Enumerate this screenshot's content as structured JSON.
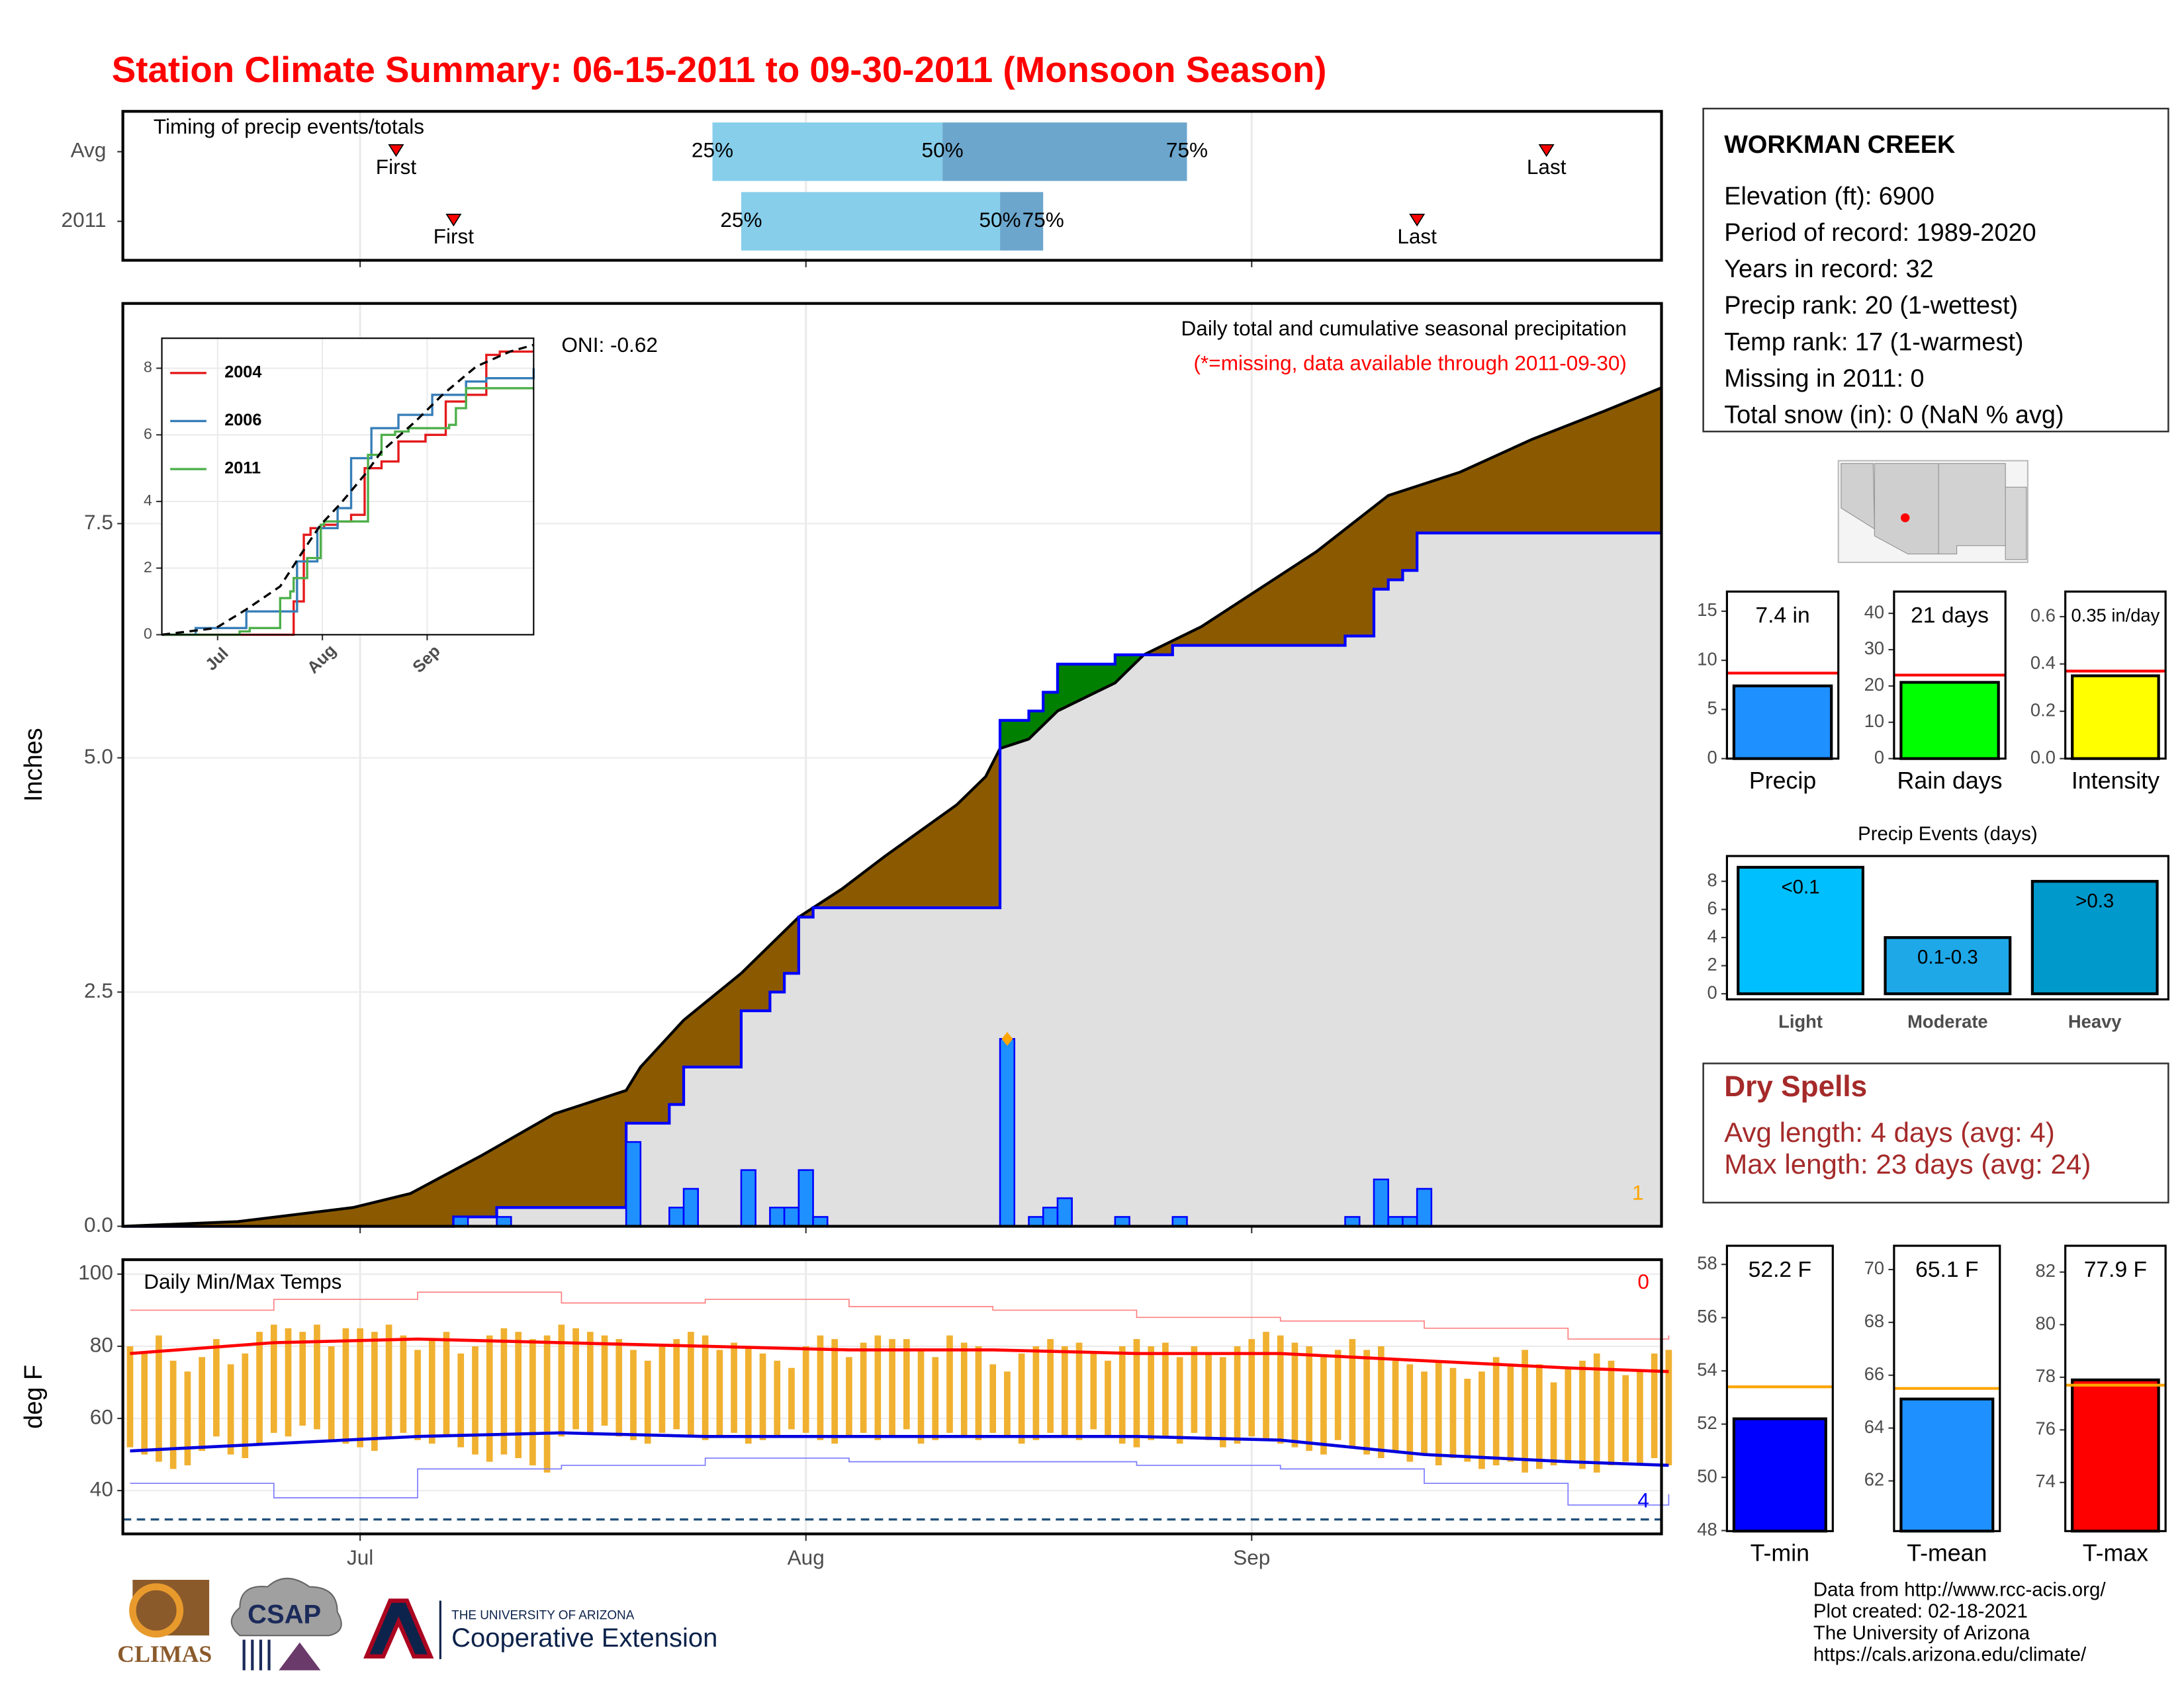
{
  "title": "Station Climate Summary: 06-15-2011 to 09-30-2011 (Monsoon Season)",
  "station": {
    "name": "WORKMAN CREEK",
    "lines": [
      "Elevation (ft): 6900",
      "Period of record: 1989-2020",
      "Years in record: 32",
      "Precip rank: 20 (1-wettest)",
      "Temp rank: 17 (1-warmest)",
      "Missing in 2011: 0",
      "Total snow (in): 0 (NaN % avg)"
    ]
  },
  "dry_spells": {
    "title": "Dry Spells",
    "lines": [
      "Avg length: 4 days (avg: 4)",
      "Max length: 23 days (avg: 24)"
    ]
  },
  "footer": [
    "Data from http://www.rcc-acis.org/",
    "Plot created: 02-18-2021",
    "The University of Arizona",
    "https://cals.arizona.edu/climate/"
  ],
  "logos": {
    "climas": "CLIMAS",
    "csap": "CSAP",
    "university": "THE UNIVERSITY OF ARIZONA",
    "extension": "Cooperative Extension"
  },
  "chart_data": [
    {
      "type": "timing",
      "title": "Timing of precip events/totals",
      "rows": [
        {
          "name": "Avg",
          "values": [
            19,
            41,
            57,
            74,
            99
          ]
        },
        {
          "name": "2011",
          "values": [
            23,
            43,
            61,
            64,
            90
          ]
        }
      ],
      "marker_labels": [
        "First",
        "25%",
        "50%",
        "75%",
        "Last"
      ],
      "colors": [
        "#87ceeb",
        "#6ca6cd"
      ],
      "xlim": [
        0,
        107
      ],
      "xticks": [
        16.5,
        47.5,
        78.5
      ]
    },
    {
      "type": "precip",
      "y_label": "Inches",
      "annotations": [
        {
          "text": "Daily total and cumulative seasonal precipitation",
          "color": "#000000"
        },
        {
          "text": "(*=missing, data available through 2011-09-30)",
          "color": "#ff0000"
        },
        {
          "text": "ONI: -0.62",
          "color": "#000000"
        },
        {
          "text": "1",
          "color": "#ffa500"
        }
      ],
      "series": [
        {
          "x": [
            23,
            26,
            35,
            38,
            39,
            43,
            45,
            46,
            47,
            48,
            61,
            63,
            64,
            65,
            69,
            73,
            85,
            87,
            88,
            89,
            90
          ],
          "values": [
            0.1,
            0.1,
            0.9,
            0.2,
            0.4,
            0.6,
            0.2,
            0.2,
            0.6,
            0.1,
            2.0,
            0.1,
            0.2,
            0.3,
            0.1,
            0.1,
            0.1,
            0.5,
            0.1,
            0.1,
            0.4
          ],
          "color": "#1e90ff",
          "line_color": "#0000ff"
        }
      ],
      "lines": [
        {
          "x": [
            0,
            8,
            16,
            20,
            25,
            30,
            35,
            36,
            39,
            43,
            47,
            50,
            53,
            58,
            60,
            61,
            63,
            65,
            69,
            71,
            75,
            79,
            83,
            88,
            93,
            98,
            103,
            107
          ],
          "values": [
            0,
            0.05,
            0.2,
            0.35,
            0.76,
            1.2,
            1.45,
            1.7,
            2.2,
            2.7,
            3.3,
            3.6,
            3.95,
            4.5,
            4.8,
            5.1,
            5.2,
            5.5,
            5.8,
            6.1,
            6.4,
            6.8,
            7.2,
            7.8,
            8.05,
            8.4,
            8.7,
            8.95
          ],
          "color": "#000000"
        }
      ],
      "fill_colors": {
        "below": "#8b5a00",
        "above": "#008000",
        "base": "#e0e0e0"
      },
      "xlim": [
        0,
        107
      ],
      "ylim": [
        0,
        9.85
      ],
      "xticks": [
        16.5,
        47.5,
        78.5
      ],
      "yticks": [
        {
          "value": 0,
          "label": "0.0"
        },
        2.5,
        {
          "value": 5,
          "label": "5.0"
        },
        7.5
      ],
      "grid": true
    },
    {
      "type": "line",
      "xlim": [
        0,
        110
      ],
      "ylim": [
        0,
        8.9
      ],
      "xticks": [
        {
          "value": 16.5,
          "label": "Jul"
        },
        {
          "value": 47.5,
          "label": "Aug"
        },
        {
          "value": 78.5,
          "label": "Sep"
        }
      ],
      "yticks": [
        0,
        2,
        4,
        6,
        8
      ],
      "series": [
        {
          "name": "2004",
          "color": "#e41a1c",
          "x": [
            0,
            38,
            39,
            42,
            44,
            48,
            52,
            56,
            60,
            65,
            70,
            78,
            84,
            90,
            96,
            100,
            110
          ],
          "values": [
            0,
            0,
            1.0,
            3.0,
            3.2,
            3.3,
            3.4,
            3.6,
            5.0,
            5.2,
            5.8,
            6.0,
            7.0,
            7.2,
            8.4,
            8.5,
            8.5
          ]
        },
        {
          "name": "2006",
          "color": "#377eb8",
          "x": [
            0,
            10,
            25,
            35,
            40,
            46,
            52,
            56,
            62,
            70,
            80,
            90,
            96,
            110
          ],
          "values": [
            0,
            0.2,
            0.7,
            0.7,
            2.2,
            3.2,
            3.8,
            5.3,
            6.2,
            6.6,
            7.2,
            7.6,
            7.7,
            8.0
          ]
        },
        {
          "name": "2011",
          "color": "#4daf4a",
          "x": [
            0,
            23,
            26,
            35,
            38,
            39,
            43,
            47,
            48,
            61,
            65,
            69,
            73,
            85,
            87,
            90,
            110
          ],
          "values": [
            0,
            0.1,
            0.2,
            1.1,
            1.3,
            1.7,
            2.3,
            3.3,
            3.4,
            5.4,
            6.0,
            6.1,
            6.2,
            6.3,
            6.8,
            7.4,
            7.4
          ]
        },
        {
          "color": "#000000",
          "dash": true,
          "x": [
            0,
            16,
            25,
            35,
            43,
            47,
            53,
            60,
            65,
            75,
            83,
            93,
            103,
            110
          ],
          "values": [
            0,
            0.2,
            0.76,
            1.45,
            2.7,
            3.3,
            3.95,
            4.8,
            5.5,
            6.4,
            7.2,
            8.05,
            8.5,
            8.7
          ]
        }
      ]
    },
    {
      "type": "temps",
      "title": "Daily Min/Max Temps",
      "y_label": "deg F",
      "annotations": [
        {
          "text": "0",
          "color": "#ff0000"
        },
        {
          "text": "4",
          "color": "#0000ff"
        }
      ],
      "x": [
        0,
        1,
        2,
        3,
        4,
        5,
        6,
        7,
        8,
        9,
        10,
        11,
        12,
        13,
        14,
        15,
        16,
        17,
        18,
        19,
        20,
        21,
        22,
        23,
        24,
        25,
        26,
        27,
        28,
        29,
        30,
        31,
        32,
        33,
        34,
        35,
        36,
        37,
        38,
        39,
        40,
        41,
        42,
        43,
        44,
        45,
        46,
        47,
        48,
        49,
        50,
        51,
        52,
        53,
        54,
        55,
        56,
        57,
        58,
        59,
        60,
        61,
        62,
        63,
        64,
        65,
        66,
        67,
        68,
        69,
        70,
        71,
        72,
        73,
        74,
        75,
        76,
        77,
        78,
        79,
        80,
        81,
        82,
        83,
        84,
        85,
        86,
        87,
        88,
        89,
        90,
        91,
        92,
        93,
        94,
        95,
        96,
        97,
        98,
        99,
        100,
        101,
        102,
        103,
        104,
        105,
        106,
        107
      ],
      "series": [
        {
          "color": "#f0b030",
          "values": [
            80,
            78,
            83,
            76,
            73,
            77,
            82,
            75,
            78,
            84,
            86,
            85,
            84,
            86,
            80,
            85,
            85,
            84,
            86,
            83,
            79,
            82,
            84,
            78,
            80,
            83,
            85,
            84,
            82,
            83,
            86,
            85,
            84,
            83,
            82,
            79,
            76,
            80,
            82,
            84,
            83,
            79,
            81,
            80,
            78,
            76,
            74,
            80,
            83,
            82,
            77,
            81,
            83,
            82,
            82,
            79,
            77,
            83,
            81,
            80,
            75,
            73,
            78,
            80,
            82,
            80,
            81,
            78,
            76,
            80,
            82,
            80,
            81,
            77,
            80,
            78,
            77,
            80,
            82,
            84,
            83,
            81,
            80,
            77,
            79,
            82,
            79,
            80,
            76,
            75,
            73,
            76,
            74,
            71,
            73,
            77,
            75,
            79,
            75,
            70,
            74,
            76,
            78,
            76,
            72,
            73,
            78,
            79
          ]
        },
        {
          "values": [
            52,
            50,
            48,
            46,
            47,
            51,
            55,
            50,
            49,
            53,
            56,
            55,
            58,
            57,
            54,
            53,
            52,
            51,
            55,
            56,
            54,
            53,
            55,
            52,
            50,
            48,
            50,
            49,
            47,
            45,
            55,
            57,
            56,
            58,
            55,
            54,
            53,
            56,
            57,
            55,
            54,
            55,
            56,
            53,
            54,
            55,
            57,
            56,
            54,
            53,
            55,
            56,
            54,
            55,
            57,
            53,
            54,
            56,
            55,
            54,
            56,
            55,
            53,
            54,
            56,
            55,
            54,
            57,
            55,
            53,
            52,
            54,
            55,
            53,
            56,
            54,
            52,
            53,
            55,
            54,
            53,
            52,
            51,
            50,
            54,
            52,
            50,
            49,
            51,
            48,
            50,
            47,
            49,
            48,
            46,
            47,
            48,
            45,
            46,
            47,
            48,
            46,
            45,
            47,
            48,
            47,
            49,
            47
          ]
        }
      ],
      "lines": [
        {
          "color": "#ff0000",
          "width": 2.2,
          "x": [
            0,
            10,
            20,
            30,
            40,
            50,
            60,
            70,
            80,
            90,
            100,
            107
          ],
          "values": [
            78,
            81,
            82,
            81,
            80,
            79,
            79,
            78,
            78,
            76,
            74,
            73
          ]
        },
        {
          "color": "#0000dd",
          "width": 2.2,
          "x": [
            0,
            10,
            20,
            30,
            40,
            50,
            60,
            70,
            80,
            90,
            100,
            107
          ],
          "values": [
            51,
            53,
            55,
            56,
            55,
            55,
            55,
            55,
            54,
            50,
            48,
            47
          ]
        },
        {
          "color": "#ff8080",
          "width": 0.8,
          "step": true,
          "x": [
            0,
            10,
            20,
            30,
            40,
            50,
            60,
            70,
            80,
            90,
            100,
            107
          ],
          "values": [
            90,
            93,
            95,
            92,
            93,
            91,
            90,
            88,
            87,
            85,
            82,
            83
          ]
        },
        {
          "color": "#7b7bff",
          "width": 0.8,
          "step": true,
          "x": [
            0,
            10,
            20,
            30,
            40,
            50,
            60,
            70,
            80,
            90,
            100,
            107
          ],
          "values": [
            42,
            38,
            46,
            47,
            49,
            48,
            48,
            47,
            46,
            42,
            36,
            39
          ]
        }
      ],
      "freeze_line": 32,
      "xlim": [
        0,
        107
      ],
      "ylim": [
        28,
        104
      ],
      "xticks": [
        {
          "value": 16.5,
          "label": "Jul"
        },
        {
          "value": 47.5,
          "label": "Aug"
        },
        {
          "value": 78.5,
          "label": "Sep"
        }
      ],
      "yticks": [
        40,
        60,
        80,
        100
      ],
      "grid": true
    },
    {
      "type": "bar",
      "categories": [
        "Precip"
      ],
      "values": [
        7.4
      ],
      "value_labels": [
        "7.4 in"
      ],
      "avg": 8.7,
      "avg_color": "#ff0000",
      "color": "#1e90ff",
      "ylim": [
        0,
        17
      ],
      "yticks": [
        0,
        5,
        10,
        15
      ]
    },
    {
      "type": "bar",
      "categories": [
        "Rain days"
      ],
      "values": [
        21
      ],
      "value_labels": [
        "21 days"
      ],
      "avg": 23,
      "avg_color": "#ff0000",
      "color": "#00ff00",
      "ylim": [
        0,
        46
      ],
      "yticks": [
        0,
        10,
        20,
        30,
        40
      ]
    },
    {
      "type": "bar",
      "categories": [
        "Intensity"
      ],
      "values": [
        0.35
      ],
      "value_labels": [
        "0.35 in/day"
      ],
      "avg": 0.37,
      "avg_color": "#ff0000",
      "color": "#ffff00",
      "ylim": [
        0,
        0.706
      ],
      "yticks": [
        {
          "value": 0,
          "label": "0.0"
        },
        0.2,
        0.4,
        0.6
      ]
    },
    {
      "type": "bar",
      "title": "Precip Events (days)",
      "categories": [
        "Light",
        "Moderate",
        "Heavy"
      ],
      "values": [
        9,
        4,
        8
      ],
      "bar_labels": [
        "<0.1",
        "0.1-0.3",
        ">0.3"
      ],
      "colors": [
        "#00bfff",
        "#1ea8e8",
        "#0099cc"
      ],
      "ylim": [
        -0.4,
        9.8
      ],
      "yticks": [
        0,
        2,
        4,
        6,
        8
      ]
    },
    {
      "type": "bar",
      "categories": [
        "T-min"
      ],
      "values": [
        52.2
      ],
      "value_labels": [
        "52.2 F"
      ],
      "avg": 53.4,
      "avg_color": "#ffa500",
      "color": "#0000ff",
      "ylim": [
        47.98,
        58.7
      ],
      "yticks": [
        48,
        50,
        52,
        54,
        56,
        58
      ]
    },
    {
      "type": "bar",
      "categories": [
        "T-mean"
      ],
      "values": [
        65.1
      ],
      "value_labels": [
        "65.1 F"
      ],
      "avg": 65.5,
      "avg_color": "#ffa500",
      "color": "#1e90ff",
      "ylim": [
        60.1,
        70.9
      ],
      "yticks": [
        62,
        64,
        66,
        68,
        70
      ]
    },
    {
      "type": "bar",
      "categories": [
        "T-max"
      ],
      "values": [
        77.9
      ],
      "value_labels": [
        "77.9 F"
      ],
      "avg": 77.7,
      "avg_color": "#ffa500",
      "color": "#ff0000",
      "ylim": [
        72.15,
        83
      ],
      "yticks": [
        74,
        76,
        78,
        80,
        82
      ]
    }
  ]
}
